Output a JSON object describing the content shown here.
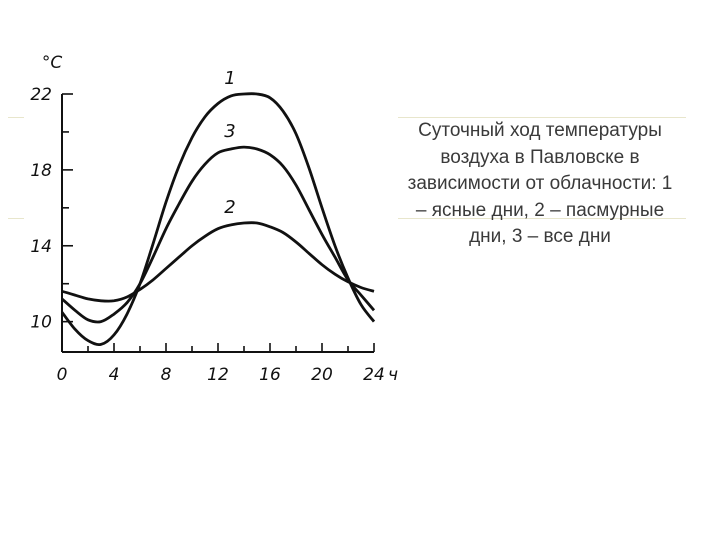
{
  "caption": "Суточный ход температуры воздуха в Павловске в зависимости от облачности: 1 – ясные дни, 2 – пасмурные дни, 3 – все дни",
  "colors": {
    "curve": "#111111",
    "axis": "#111111",
    "decor": "#e8e6cc",
    "caption": "#3a3a3a"
  },
  "chart_data": {
    "type": "line",
    "title": "",
    "ylabel": "°C",
    "xunit": "ч",
    "xlim": [
      0,
      24
    ],
    "ylim": [
      8.4,
      22
    ],
    "xticks": [
      0,
      4,
      8,
      12,
      16,
      20,
      24
    ],
    "xtick_labels": [
      "0",
      "4",
      "8",
      "12",
      "16",
      "20",
      "24"
    ],
    "yticks": [
      10,
      14,
      18,
      22
    ],
    "ytick_labels": [
      "10",
      "14",
      "18",
      "22"
    ],
    "grid": false,
    "series": [
      {
        "name": "1",
        "x": [
          0,
          1,
          2,
          3,
          4,
          5,
          6,
          7,
          8,
          9,
          10,
          11,
          12,
          13,
          14,
          15,
          16,
          17,
          18,
          19,
          20,
          21,
          22,
          23,
          24
        ],
        "y": [
          10.5,
          9.6,
          9.0,
          8.8,
          9.3,
          10.4,
          12.0,
          14.1,
          16.3,
          18.2,
          19.7,
          20.8,
          21.5,
          21.9,
          22.0,
          22.0,
          21.8,
          21.1,
          19.9,
          18.1,
          16.0,
          14.0,
          12.3,
          10.9,
          10.0
        ]
      },
      {
        "name": "2",
        "x": [
          0,
          1,
          2,
          3,
          4,
          5,
          6,
          7,
          8,
          9,
          10,
          11,
          12,
          13,
          14,
          15,
          16,
          17,
          18,
          19,
          20,
          21,
          22,
          23,
          24
        ],
        "y": [
          11.6,
          11.4,
          11.2,
          11.1,
          11.1,
          11.3,
          11.7,
          12.2,
          12.8,
          13.4,
          14.0,
          14.5,
          14.9,
          15.1,
          15.2,
          15.2,
          15.0,
          14.7,
          14.2,
          13.6,
          13.0,
          12.5,
          12.1,
          11.8,
          11.6
        ]
      },
      {
        "name": "3",
        "x": [
          0,
          1,
          2,
          3,
          4,
          5,
          6,
          7,
          8,
          9,
          10,
          11,
          12,
          13,
          14,
          15,
          16,
          17,
          18,
          19,
          20,
          21,
          22,
          23,
          24
        ],
        "y": [
          11.2,
          10.6,
          10.1,
          10.0,
          10.4,
          11.0,
          12.0,
          13.4,
          14.9,
          16.2,
          17.4,
          18.3,
          18.9,
          19.1,
          19.2,
          19.1,
          18.8,
          18.2,
          17.2,
          15.9,
          14.6,
          13.4,
          12.2,
          11.4,
          10.6
        ]
      }
    ]
  }
}
